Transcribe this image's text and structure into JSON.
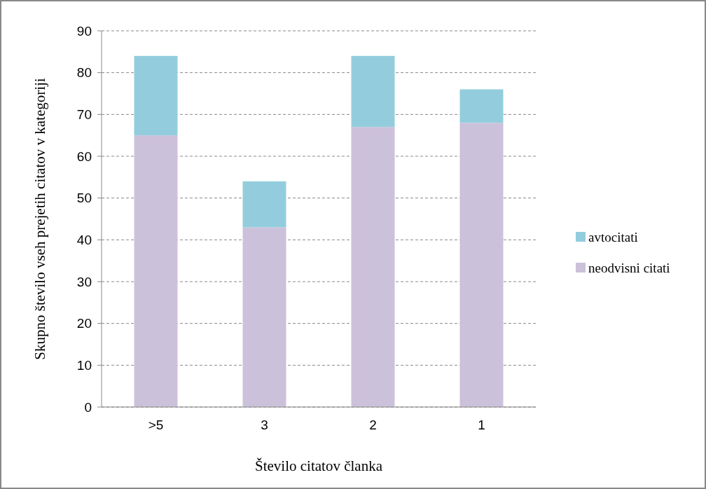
{
  "chart_data": {
    "type": "bar",
    "xlabel": "Število citatov članka",
    "ylabel": "Skupno število vseh prejetih citatov v kategoriji",
    "categories": [
      ">5",
      "3",
      "2",
      "1"
    ],
    "stacked": true,
    "series": [
      {
        "name": "neodvisni citati",
        "color": "#ccc1da",
        "values": [
          65,
          43,
          67,
          68
        ]
      },
      {
        "name": "avtocitati",
        "color": "#93cddd",
        "values": [
          19,
          11,
          17,
          8
        ]
      }
    ],
    "ylim": [
      0,
      90
    ],
    "yticks": [
      0,
      10,
      20,
      30,
      40,
      50,
      60,
      70,
      80,
      90
    ],
    "grid": "y",
    "legend": "right"
  }
}
